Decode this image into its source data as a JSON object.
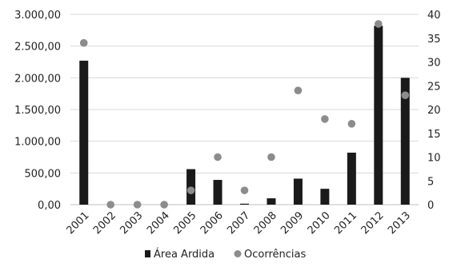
{
  "chart_data": {
    "type": "bar",
    "categories": [
      "2001",
      "2002",
      "2003",
      "2004",
      "2005",
      "2006",
      "2007",
      "2008",
      "2009",
      "2010",
      "2011",
      "2012",
      "2013"
    ],
    "series": [
      {
        "name": "Área Ardida",
        "type": "bar",
        "axis": "left",
        "color": "#1a1a1a",
        "values": [
          2270,
          0,
          0,
          0,
          560,
          390,
          15,
          100,
          410,
          250,
          820,
          2820,
          2000
        ]
      },
      {
        "name": "Ocorrências",
        "type": "scatter",
        "axis": "right",
        "color": "#8c8c8c",
        "values": [
          34,
          0,
          0,
          0,
          3,
          10,
          3,
          10,
          24,
          18,
          17,
          38,
          23
        ]
      }
    ],
    "left_axis": {
      "ylim": [
        0,
        3000
      ],
      "ticks": [
        0,
        500,
        1000,
        1500,
        2000,
        2500,
        3000
      ],
      "tick_labels": [
        "0,00",
        "500,00",
        "1.000,00",
        "1.500,00",
        "2.000,00",
        "2.500,00",
        "3.000,00"
      ]
    },
    "right_axis": {
      "ylim": [
        0,
        40
      ],
      "ticks": [
        0,
        5,
        10,
        15,
        20,
        25,
        30,
        35,
        40
      ],
      "tick_labels": [
        "0",
        "5",
        "10",
        "15",
        "20",
        "25",
        "30",
        "35",
        "40"
      ]
    },
    "grid": true,
    "legend_position": "bottom",
    "title": "",
    "xlabel": "",
    "ylabel": ""
  }
}
